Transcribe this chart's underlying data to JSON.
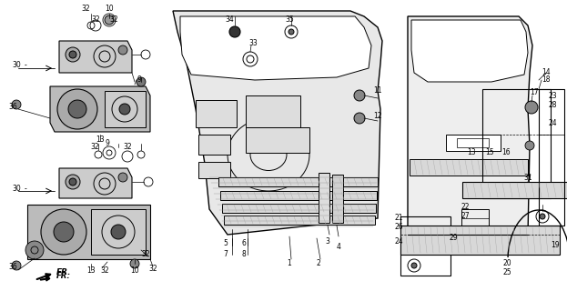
{
  "bg_color": "#ffffff",
  "figsize": [
    6.23,
    3.2
  ],
  "dpi": 100,
  "line_color": "#000000",
  "text_color": "#000000",
  "font_size": 5.5
}
